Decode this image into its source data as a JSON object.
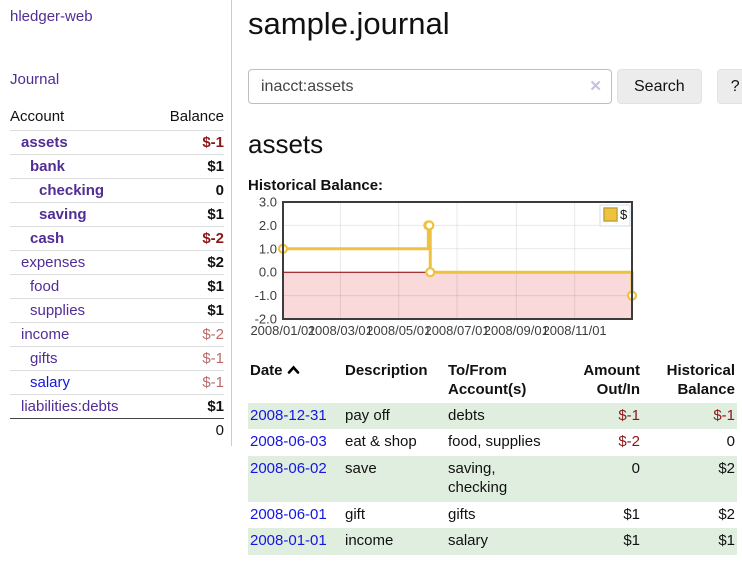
{
  "colors": {
    "purple_link": "#512d96",
    "blue_link": "#1515e0",
    "negative_strong": "#8c1717",
    "negative_soft": "#bb6a6a",
    "stripe_green": "#dfeedf",
    "chart_line_gold": "#edc240",
    "chart_negative_bg": "#f9d9d9",
    "chart_zero_line": "#8b0000",
    "chart_border": "#3c3c3c"
  },
  "sidebar": {
    "brand": "hledger-web",
    "nav": {
      "journal_label": "Journal"
    },
    "accounts_table": {
      "headers": {
        "account": "Account",
        "balance": "Balance"
      },
      "rows": [
        {
          "name": "assets",
          "indent": 1,
          "bold": true,
          "balance": "$-1",
          "balance_style": "neg-strong",
          "link": "purple"
        },
        {
          "name": "bank",
          "indent": 2,
          "bold": true,
          "balance": "$1",
          "balance_style": "pos",
          "link": "purple"
        },
        {
          "name": "checking",
          "indent": 3,
          "bold": true,
          "balance": "0",
          "balance_style": "pos",
          "link": "purple"
        },
        {
          "name": "saving",
          "indent": 3,
          "bold": true,
          "balance": "$1",
          "balance_style": "pos",
          "link": "purple"
        },
        {
          "name": "cash",
          "indent": 2,
          "bold": true,
          "balance": "$-2",
          "balance_style": "neg-strong",
          "link": "purple"
        },
        {
          "name": "expenses",
          "indent": 1,
          "bold": false,
          "balance": "$2",
          "balance_style": "pos",
          "link": "purple"
        },
        {
          "name": "food",
          "indent": 2,
          "bold": false,
          "balance": "$1",
          "balance_style": "pos",
          "link": "purple"
        },
        {
          "name": "supplies",
          "indent": 2,
          "bold": false,
          "balance": "$1",
          "balance_style": "pos",
          "link": "purple"
        },
        {
          "name": "income",
          "indent": 1,
          "bold": false,
          "balance": "$-2",
          "balance_style": "neg-soft",
          "link": "purple"
        },
        {
          "name": "gifts",
          "indent": 2,
          "bold": false,
          "balance": "$-1",
          "balance_style": "neg-soft",
          "link": "purple"
        },
        {
          "name": "salary",
          "indent": 2,
          "bold": false,
          "balance": "$-1",
          "balance_style": "neg-soft",
          "link": "blue"
        },
        {
          "name": "liabilities:debts",
          "indent": 1,
          "bold": false,
          "balance": "$1",
          "balance_style": "pos",
          "link": "purple"
        }
      ],
      "total": "0"
    }
  },
  "header": {
    "title": "sample.journal"
  },
  "search": {
    "value": "inacct:assets",
    "clear_icon": "✕",
    "button_label": "Search",
    "help_label": "?"
  },
  "account_page": {
    "heading": "assets",
    "chart_label": "Historical Balance:"
  },
  "chart_data": {
    "type": "line",
    "step": true,
    "legend": [
      {
        "label": "$",
        "color": "#edc240"
      }
    ],
    "legend_position": "top-right",
    "grid": true,
    "x_range": [
      "2008-01-01",
      "2008-12-31"
    ],
    "x_ticks": [
      {
        "date": "2008-01-01",
        "label": "2008/01/01"
      },
      {
        "date": "2008-03-01",
        "label": "2008/03/01"
      },
      {
        "date": "2008-05-01",
        "label": "2008/05/01"
      },
      {
        "date": "2008-07-01",
        "label": "2008/07/01"
      },
      {
        "date": "2008-09-01",
        "label": "2008/09/01"
      },
      {
        "date": "2008-11-01",
        "label": "2008/11/01"
      }
    ],
    "y_ticks": [
      3.0,
      2.0,
      1.0,
      0.0,
      -1.0,
      -2.0
    ],
    "y_tick_labels": [
      "3.0",
      "2.0",
      "1.0",
      "0.0",
      "-1.0",
      "-2.0"
    ],
    "ylim": [
      -2.0,
      3.0
    ],
    "negative_region_shaded": true,
    "series": [
      {
        "name": "$",
        "color": "#edc240",
        "points": [
          {
            "date": "2008-01-01",
            "value": 1
          },
          {
            "date": "2008-06-01",
            "value": 2
          },
          {
            "date": "2008-06-02",
            "value": 2
          },
          {
            "date": "2008-06-03",
            "value": 0
          },
          {
            "date": "2008-12-31",
            "value": -1
          }
        ]
      }
    ]
  },
  "register": {
    "headers": {
      "date": "Date",
      "description": "Description",
      "tofrom": "To/From Account(s)",
      "amount": "Amount Out/In",
      "balance": "Historical Balance"
    },
    "rows": [
      {
        "date": "2008-12-31",
        "description": "pay off",
        "accounts": "debts",
        "amount": "$-1",
        "amount_neg": true,
        "balance": "$-1",
        "balance_neg": true
      },
      {
        "date": "2008-06-03",
        "description": "eat & shop",
        "accounts": "food, supplies",
        "amount": "$-2",
        "amount_neg": true,
        "balance": "0",
        "balance_neg": false
      },
      {
        "date": "2008-06-02",
        "description": "save",
        "accounts": "saving,\nchecking",
        "amount": "0",
        "amount_neg": false,
        "balance": "$2",
        "balance_neg": false
      },
      {
        "date": "2008-06-01",
        "description": "gift",
        "accounts": "gifts",
        "amount": "$1",
        "amount_neg": false,
        "balance": "$2",
        "balance_neg": false
      },
      {
        "date": "2008-01-01",
        "description": "income",
        "accounts": "salary",
        "amount": "$1",
        "amount_neg": false,
        "balance": "$1",
        "balance_neg": false
      }
    ]
  }
}
